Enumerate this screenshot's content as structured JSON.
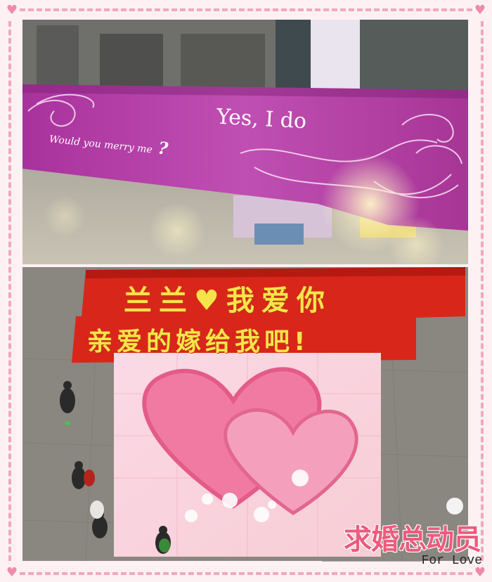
{
  "banner_top": {
    "question": "Would you merry me",
    "question_mark": "?",
    "answer": "Yes, I do"
  },
  "banner_red": {
    "line1_name": "兰兰",
    "line1_heart": "♥",
    "line1_rest": "我爱你",
    "line2": "亲爱的嫁给我吧!"
  },
  "logo": {
    "chinese": "求婚总动员",
    "english": "For Love"
  },
  "colors": {
    "frame_pink": "#f4a7c0",
    "banner_purple": "#b33aa5",
    "banner_red": "#d9261a",
    "heart_pink": "#f07aa2"
  }
}
